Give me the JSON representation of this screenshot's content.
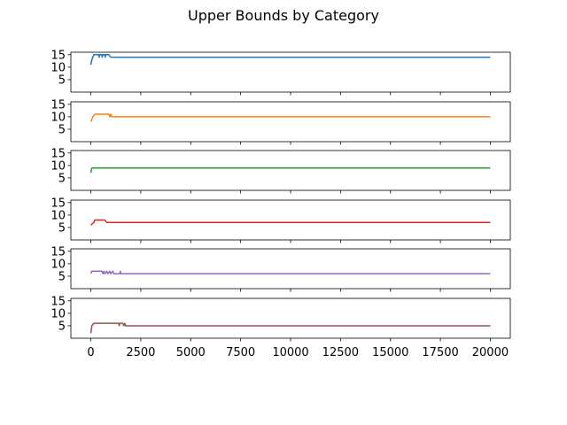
{
  "chart_data": {
    "type": "line",
    "title": "Upper Bounds by Category",
    "xlim": [
      -1000,
      21000
    ],
    "ylim": [
      0,
      16
    ],
    "yticks": [
      5,
      10,
      15
    ],
    "xticks": [
      0,
      2500,
      5000,
      7500,
      10000,
      12500,
      15000,
      17500,
      20000
    ],
    "grid": false,
    "series": [
      {
        "color": "#1f77b4",
        "points": [
          [
            0,
            11
          ],
          [
            50,
            13
          ],
          [
            100,
            14
          ],
          [
            150,
            15
          ],
          [
            400,
            15
          ],
          [
            420,
            14
          ],
          [
            450,
            15
          ],
          [
            550,
            15
          ],
          [
            570,
            14
          ],
          [
            600,
            15
          ],
          [
            700,
            15
          ],
          [
            720,
            14
          ],
          [
            750,
            15
          ],
          [
            900,
            15
          ],
          [
            1000,
            14
          ],
          [
            20000,
            14
          ]
        ]
      },
      {
        "color": "#ff7f0e",
        "points": [
          [
            0,
            8
          ],
          [
            100,
            10
          ],
          [
            200,
            11
          ],
          [
            700,
            11
          ],
          [
            750,
            11
          ],
          [
            800,
            11
          ],
          [
            900,
            11
          ],
          [
            950,
            10
          ],
          [
            1000,
            11
          ],
          [
            1050,
            10
          ],
          [
            20000,
            10
          ]
        ]
      },
      {
        "color": "#2ca02c",
        "points": [
          [
            0,
            7
          ],
          [
            50,
            9
          ],
          [
            20000,
            9
          ]
        ]
      },
      {
        "color": "#d62728",
        "points": [
          [
            0,
            6
          ],
          [
            150,
            7
          ],
          [
            200,
            8
          ],
          [
            700,
            8
          ],
          [
            800,
            7
          ],
          [
            20000,
            7
          ]
        ]
      },
      {
        "color": "#9467bd",
        "points": [
          [
            0,
            6
          ],
          [
            50,
            7
          ],
          [
            550,
            7
          ],
          [
            600,
            6
          ],
          [
            650,
            7
          ],
          [
            700,
            6
          ],
          [
            800,
            7
          ],
          [
            850,
            6
          ],
          [
            950,
            7
          ],
          [
            1000,
            6
          ],
          [
            1100,
            7
          ],
          [
            1150,
            6
          ],
          [
            1450,
            6
          ],
          [
            1480,
            7
          ],
          [
            1500,
            6
          ],
          [
            20000,
            6
          ]
        ]
      },
      {
        "color": "#8c564b",
        "points": [
          [
            0,
            2
          ],
          [
            50,
            5
          ],
          [
            150,
            6
          ],
          [
            1400,
            6
          ],
          [
            1420,
            5
          ],
          [
            1450,
            6
          ],
          [
            1600,
            6
          ],
          [
            1650,
            5
          ],
          [
            1700,
            6
          ],
          [
            1750,
            5
          ],
          [
            20000,
            5
          ]
        ]
      }
    ]
  }
}
